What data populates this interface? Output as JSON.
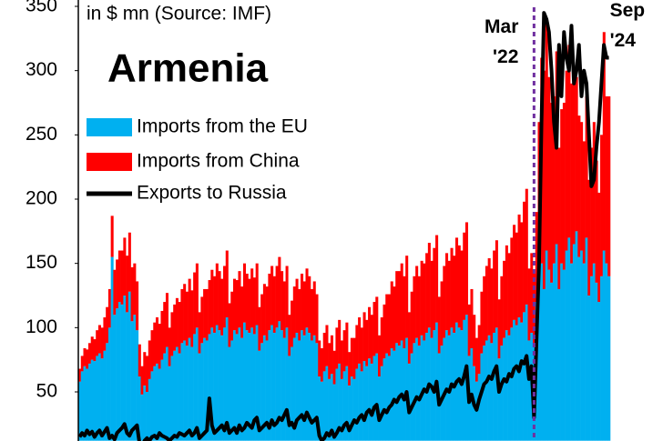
{
  "chart_data": {
    "type": "bar_line",
    "title": "Armenia",
    "subtitle": "in $ mn (Source: IMF)",
    "ylim": [
      12,
      355
    ],
    "yticks": [
      50,
      100,
      150,
      200,
      250,
      300,
      350
    ],
    "grid": false,
    "marker_color": "#7030a0",
    "categories": [
      null,
      null,
      null,
      null,
      null,
      null,
      null,
      null,
      null,
      null,
      null,
      null,
      null,
      null,
      null,
      null,
      null,
      null,
      null,
      null,
      null,
      null,
      null,
      null,
      null,
      null,
      null,
      null,
      null,
      null,
      null,
      null,
      null,
      null,
      null,
      null,
      null,
      null,
      null,
      null,
      null,
      null,
      null,
      null,
      null,
      null,
      null,
      null,
      null,
      null,
      null,
      null,
      null,
      null,
      null,
      null,
      null,
      null,
      null,
      null,
      null,
      null,
      null,
      null,
      null,
      null,
      null,
      null,
      null,
      null,
      null,
      null,
      null,
      null,
      null,
      null,
      null,
      null,
      null,
      null,
      null,
      null,
      null,
      null,
      null,
      null,
      null,
      null,
      null,
      null,
      null,
      null,
      null,
      null,
      null,
      null,
      null,
      null,
      null,
      null,
      null,
      null,
      null,
      null,
      null,
      null,
      null,
      null,
      null,
      null,
      null,
      null,
      null,
      null,
      null,
      null,
      null,
      null,
      null,
      null,
      null,
      null,
      null,
      null,
      null,
      null,
      null,
      null,
      null,
      null,
      null,
      null,
      null,
      null,
      null,
      null,
      null,
      null,
      null,
      null,
      null,
      null,
      null,
      null,
      null,
      null,
      null,
      null,
      null,
      null,
      null,
      null,
      null,
      null,
      null,
      null,
      null,
      null,
      null,
      null,
      null,
      null,
      null,
      null,
      null,
      null,
      null,
      null,
      null,
      null,
      null,
      null,
      null,
      null,
      null,
      null,
      null,
      null,
      null,
      null,
      null,
      null,
      "Mar '22",
      null,
      null,
      null,
      null,
      null,
      null,
      null,
      null,
      null,
      null,
      null,
      null,
      null,
      null,
      null,
      null,
      null,
      null,
      null,
      null,
      null,
      null,
      null,
      null,
      null,
      null,
      null,
      null,
      null,
      "Sep '24"
    ],
    "series": [
      {
        "name": "Imports from the EU",
        "kind": "bar",
        "color": "#00b0f0",
        "values": [
          58,
          66,
          70,
          68,
          72,
          75,
          74,
          78,
          80,
          76,
          82,
          88,
          100,
          155,
          110,
          115,
          120,
          118,
          125,
          112,
          128,
          105,
          110,
          98,
          62,
          48,
          55,
          50,
          60,
          66,
          70,
          72,
          68,
          75,
          80,
          85,
          70,
          78,
          82,
          85,
          80,
          88,
          90,
          86,
          92,
          85,
          95,
          100,
          80,
          88,
          92,
          90,
          95,
          100,
          96,
          102,
          98,
          94,
          100,
          108,
          85,
          90,
          98,
          95,
          100,
          92,
          104,
          98,
          96,
          100,
          95,
          102,
          82,
          88,
          94,
          90,
          98,
          102,
          96,
          100,
          105,
          98,
          92,
          100,
          78,
          85,
          92,
          96,
          90,
          98,
          94,
          100,
          96,
          90,
          94,
          88,
          62,
          58,
          66,
          70,
          60,
          64,
          56,
          68,
          72,
          60,
          66,
          70,
          55,
          62,
          60,
          68,
          72,
          66,
          74,
          70,
          76,
          72,
          78,
          80,
          62,
          70,
          76,
          80,
          78,
          84,
          82,
          88,
          86,
          90,
          84,
          92,
          72,
          80,
          88,
          92,
          86,
          94,
          90,
          96,
          100,
          92,
          98,
          104,
          80,
          86,
          92,
          98,
          94,
          100,
          96,
          104,
          100,
          98,
          106,
          110,
          78,
          84,
          70,
          58,
          64,
          80,
          86,
          90,
          94,
          88,
          96,
          100,
          76,
          86,
          92,
          98,
          94,
          100,
          106,
          102,
          108,
          104,
          112,
          118,
          90,
          96,
          88,
          120,
          140,
          150,
          130,
          160,
          145,
          135,
          150,
          165,
          130,
          150,
          145,
          160,
          170,
          150,
          165,
          175,
          155,
          160,
          150,
          170,
          125,
          140,
          150,
          135,
          120,
          140,
          160,
          150,
          140
        ]
      },
      {
        "name": "Imports from China",
        "kind": "bar",
        "color": "#ff0000",
        "values": [
          10,
          12,
          14,
          15,
          16,
          18,
          17,
          20,
          22,
          24,
          26,
          28,
          30,
          32,
          35,
          38,
          40,
          42,
          45,
          44,
          46,
          42,
          40,
          38,
          25,
          22,
          26,
          28,
          30,
          32,
          34,
          36,
          35,
          38,
          40,
          42,
          30,
          34,
          36,
          38,
          40,
          42,
          44,
          42,
          46,
          44,
          48,
          50,
          32,
          36,
          38,
          40,
          42,
          45,
          44,
          48,
          46,
          44,
          48,
          52,
          34,
          38,
          40,
          42,
          44,
          40,
          46,
          44,
          42,
          46,
          44,
          48,
          34,
          38,
          40,
          42,
          44,
          46,
          44,
          48,
          50,
          46,
          44,
          48,
          32,
          36,
          40,
          42,
          40,
          44,
          42,
          46,
          44,
          40,
          42,
          38,
          28,
          26,
          30,
          32,
          28,
          30,
          26,
          32,
          34,
          30,
          32,
          34,
          26,
          30,
          32,
          34,
          36,
          34,
          38,
          36,
          40,
          38,
          42,
          44,
          32,
          38,
          42,
          46,
          48,
          52,
          50,
          56,
          58,
          60,
          56,
          64,
          40,
          48,
          52,
          56,
          54,
          58,
          60,
          62,
          66,
          60,
          64,
          68,
          44,
          50,
          56,
          60,
          58,
          62,
          60,
          66,
          64,
          62,
          68,
          72,
          40,
          46,
          40,
          34,
          38,
          48,
          54,
          58,
          60,
          58,
          64,
          68,
          46,
          54,
          60,
          66,
          64,
          70,
          74,
          72,
          80,
          78,
          86,
          90,
          56,
          62,
          54,
          70,
          120,
          160,
          170,
          180,
          150,
          140,
          130,
          150,
          110,
          120,
          130,
          140,
          150,
          140,
          130,
          120,
          110,
          100,
          95,
          110,
          90,
          100,
          110,
          95,
          85,
          110,
          170,
          130,
          140
        ]
      },
      {
        "name": "Exports to Russia",
        "kind": "line",
        "color": "#000000",
        "values": [
          15,
          18,
          16,
          20,
          17,
          19,
          15,
          18,
          20,
          16,
          19,
          22,
          14,
          16,
          13,
          18,
          20,
          22,
          25,
          18,
          16,
          20,
          22,
          24,
          10,
          8,
          12,
          14,
          12,
          15,
          16,
          14,
          18,
          16,
          15,
          14,
          12,
          14,
          16,
          15,
          18,
          17,
          16,
          18,
          20,
          16,
          18,
          22,
          14,
          16,
          18,
          20,
          45,
          24,
          18,
          20,
          22,
          24,
          20,
          26,
          18,
          20,
          22,
          18,
          24,
          20,
          22,
          26,
          24,
          22,
          28,
          30,
          20,
          22,
          24,
          26,
          22,
          28,
          24,
          26,
          30,
          28,
          32,
          36,
          24,
          26,
          22,
          28,
          30,
          32,
          28,
          34,
          30,
          26,
          28,
          30,
          16,
          12,
          14,
          18,
          16,
          20,
          15,
          18,
          22,
          20,
          24,
          26,
          20,
          24,
          28,
          26,
          30,
          32,
          28,
          34,
          36,
          32,
          38,
          40,
          28,
          32,
          36,
          34,
          38,
          40,
          44,
          42,
          46,
          48,
          44,
          50,
          34,
          38,
          42,
          46,
          44,
          48,
          52,
          50,
          56,
          54,
          50,
          58,
          40,
          44,
          48,
          52,
          50,
          56,
          54,
          58,
          60,
          56,
          62,
          70,
          42,
          48,
          40,
          36,
          44,
          50,
          56,
          58,
          62,
          60,
          66,
          70,
          50,
          56,
          60,
          58,
          64,
          62,
          68,
          70,
          66,
          74,
          72,
          78,
          60,
          70,
          30,
          90,
          150,
          260,
          345,
          340,
          330,
          300,
          260,
          240,
          320,
          280,
          330,
          310,
          300,
          335,
          290,
          300,
          320,
          280,
          300,
          290,
          250,
          210,
          215,
          240,
          260,
          290,
          320,
          310,
          310
        ]
      }
    ]
  }
}
